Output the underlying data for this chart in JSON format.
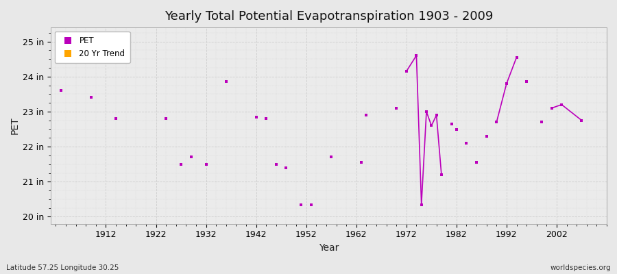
{
  "title": "Yearly Total Potential Evapotranspiration 1903 - 2009",
  "xlabel": "Year",
  "ylabel": "PET",
  "lat_lon_label": "Latitude 57.25 Longitude 30.25",
  "watermark": "worldspecies.org",
  "ylim": [
    19.8,
    25.4
  ],
  "yticks": [
    20,
    21,
    22,
    23,
    24,
    25
  ],
  "ytick_labels": [
    "20 in",
    "21 in",
    "22 in",
    "23 in",
    "24 in",
    "25 in"
  ],
  "xlim": [
    1901,
    2012
  ],
  "xticks": [
    1912,
    1922,
    1932,
    1942,
    1952,
    1962,
    1972,
    1982,
    1992,
    2002
  ],
  "pet_color": "#BB00BB",
  "trend_color": "#FFA500",
  "bg_color": "#E8E8E8",
  "plot_bg_color": "#EBEBEB",
  "grid_major_color": "#D0D0D0",
  "grid_minor_color": "#DCDCDC",
  "years": [
    1903,
    1909,
    1914,
    1924,
    1927,
    1929,
    1932,
    1936,
    1942,
    1944,
    1946,
    1948,
    1951,
    1953,
    1957,
    1963,
    1964,
    1970,
    1972,
    1974,
    1975,
    1976,
    1977,
    1978,
    1979,
    1981,
    1982,
    1984,
    1986,
    1988,
    1990,
    1992,
    1994,
    1996,
    1999,
    2001,
    2003,
    2007
  ],
  "pet_values": [
    23.6,
    23.4,
    22.8,
    22.8,
    21.5,
    21.7,
    21.5,
    23.85,
    22.85,
    22.8,
    21.5,
    21.4,
    20.35,
    20.35,
    21.7,
    21.55,
    22.9,
    23.1,
    24.15,
    24.6,
    20.35,
    23.0,
    22.6,
    22.9,
    21.2,
    22.65,
    22.5,
    22.1,
    21.55,
    22.3,
    22.7,
    23.8,
    24.55,
    23.85,
    22.7,
    23.1,
    23.2,
    22.75
  ],
  "connected_segments": [
    [
      1972,
      1974,
      1975,
      1976,
      1977,
      1978,
      1979
    ],
    [
      1990,
      1992,
      1994
    ],
    [
      2001,
      2003,
      2007
    ]
  ]
}
